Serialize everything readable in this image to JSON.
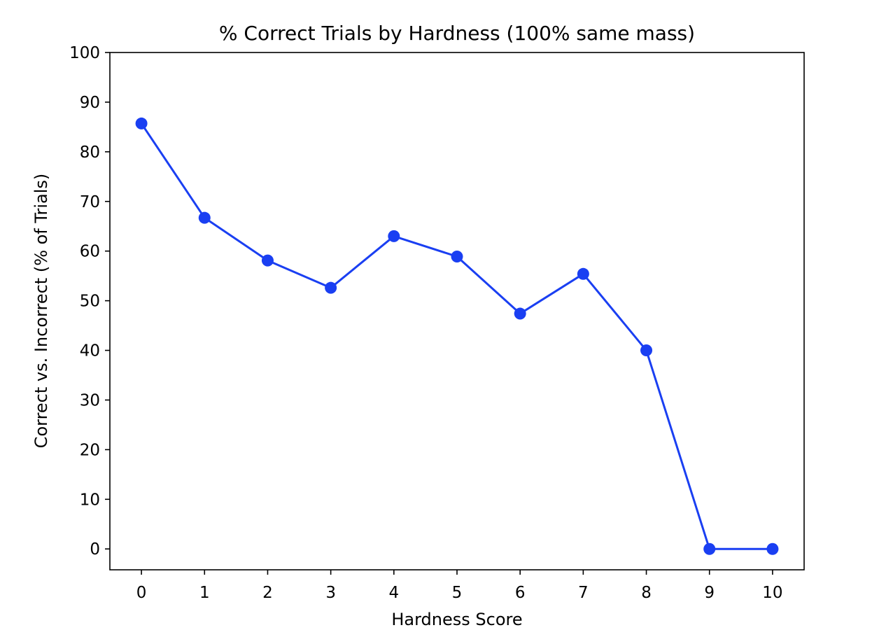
{
  "chart_data": {
    "type": "line",
    "title": "% Correct Trials by Hardness (100% same mass)",
    "xlabel": "Hardness Score",
    "ylabel": "Correct vs. Incorrect (% of Trials)",
    "x": [
      0,
      1,
      2,
      3,
      4,
      5,
      6,
      7,
      8,
      9,
      10
    ],
    "xticks": [
      "0",
      "1",
      "2",
      "3",
      "4",
      "5",
      "6",
      "7",
      "8",
      "9",
      "10"
    ],
    "xlim": [
      -0.5,
      10.5
    ],
    "yticks": [
      "0",
      "10",
      "20",
      "30",
      "40",
      "50",
      "60",
      "70",
      "80",
      "90",
      "100"
    ],
    "ylim": [
      -4.2,
      100
    ],
    "grid": false,
    "legend": "none",
    "series": [
      {
        "color": "#1a3ff2",
        "marker": "circle",
        "values": [
          85.7,
          66.7,
          58.1,
          52.6,
          63.0,
          58.9,
          47.4,
          55.4,
          40.0,
          0.0,
          0.0
        ]
      }
    ]
  }
}
